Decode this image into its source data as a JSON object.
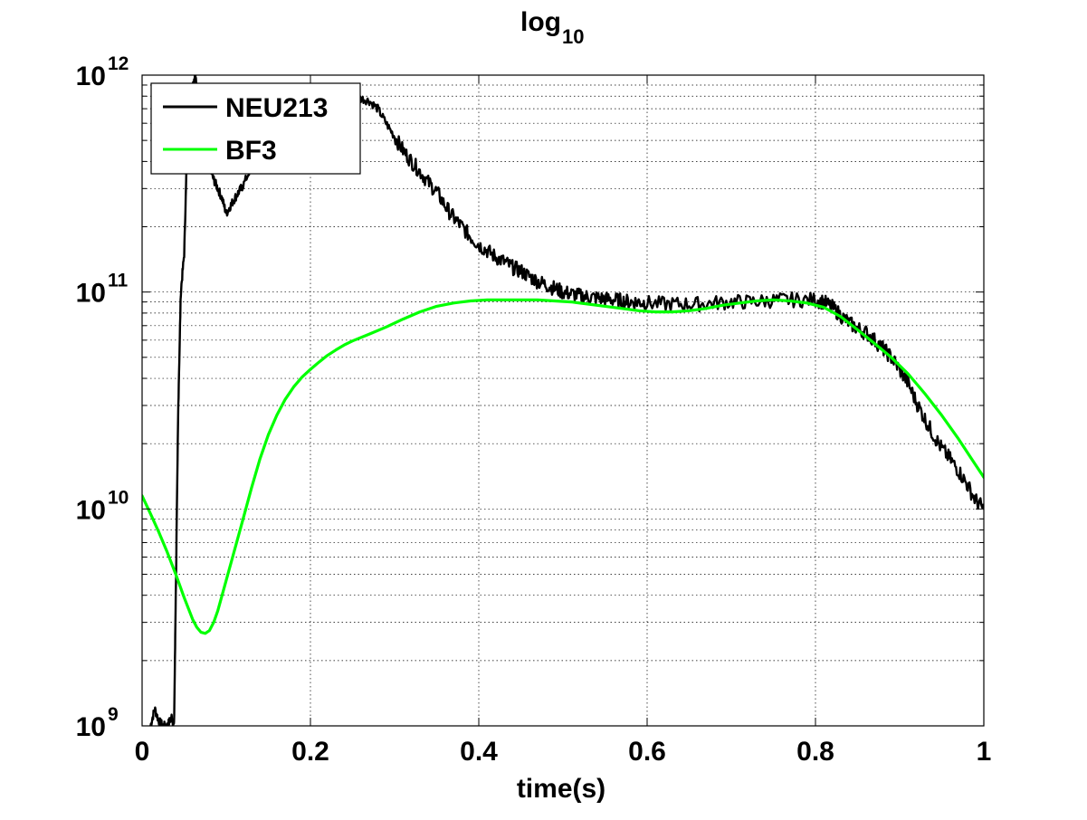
{
  "chart_data": {
    "type": "line",
    "title": "log",
    "title_subscript": "10",
    "xlabel": "time(s)",
    "ylabel": "",
    "xlim": [
      0,
      1
    ],
    "ylim": [
      1000000000,
      1000000000000
    ],
    "yscale": "log",
    "grid": true,
    "legend_position": "top-left",
    "x_ticks": [
      {
        "value": 0,
        "label": "0"
      },
      {
        "value": 0.2,
        "label": "0.2"
      },
      {
        "value": 0.4,
        "label": "0.4"
      },
      {
        "value": 0.6,
        "label": "0.6"
      },
      {
        "value": 0.8,
        "label": "0.8"
      },
      {
        "value": 1,
        "label": "1"
      }
    ],
    "y_ticks": [
      {
        "value": 1000000000,
        "base": "10",
        "exponent": "9"
      },
      {
        "value": 10000000000,
        "base": "10",
        "exponent": "10"
      },
      {
        "value": 100000000000,
        "base": "10",
        "exponent": "11"
      },
      {
        "value": 1000000000000,
        "base": "10",
        "exponent": "12"
      }
    ],
    "series": [
      {
        "name": "NEU213",
        "color": "#000000",
        "noisy": true,
        "x": [
          0.01,
          0.015,
          0.02,
          0.025,
          0.03,
          0.035,
          0.038,
          0.04,
          0.043,
          0.046,
          0.05,
          0.053,
          0.056,
          0.06,
          0.063,
          0.066,
          0.07,
          0.075,
          0.08,
          0.085,
          0.09,
          0.095,
          0.1,
          0.105,
          0.11,
          0.115,
          0.12,
          0.13,
          0.14,
          0.15,
          0.16,
          0.17,
          0.18,
          0.19,
          0.2,
          0.21,
          0.22,
          0.23,
          0.24,
          0.25,
          0.26,
          0.27,
          0.28,
          0.29,
          0.3,
          0.31,
          0.32,
          0.33,
          0.34,
          0.35,
          0.36,
          0.37,
          0.38,
          0.39,
          0.4,
          0.41,
          0.42,
          0.43,
          0.44,
          0.45,
          0.46,
          0.47,
          0.48,
          0.49,
          0.5,
          0.51,
          0.52,
          0.53,
          0.54,
          0.55,
          0.56,
          0.57,
          0.58,
          0.59,
          0.6,
          0.62,
          0.64,
          0.66,
          0.68,
          0.7,
          0.72,
          0.74,
          0.76,
          0.78,
          0.8,
          0.81,
          0.82,
          0.83,
          0.84,
          0.85,
          0.86,
          0.87,
          0.88,
          0.89,
          0.9,
          0.91,
          0.92,
          0.93,
          0.94,
          0.95,
          0.96,
          0.97,
          0.98,
          0.99,
          1.0
        ],
        "y": [
          1000000000,
          1200000000,
          1050000000,
          1000000000,
          1000000000,
          1100000000,
          1000000000,
          4000000000,
          30000000000,
          100000000000,
          150000000000,
          400000000000,
          700000000000,
          900000000000,
          1000000000000,
          800000000000,
          650000000000,
          450000000000,
          380000000000,
          330000000000,
          300000000000,
          270000000000,
          230000000000,
          250000000000,
          270000000000,
          290000000000,
          310000000000,
          380000000000,
          460000000000,
          550000000000,
          640000000000,
          710000000000,
          770000000000,
          820000000000,
          850000000000,
          860000000000,
          860000000000,
          840000000000,
          820000000000,
          800000000000,
          780000000000,
          760000000000,
          700000000000,
          600000000000,
          520000000000,
          450000000000,
          400000000000,
          360000000000,
          320000000000,
          290000000000,
          250000000000,
          220000000000,
          200000000000,
          180000000000,
          165000000000,
          155000000000,
          145000000000,
          138000000000,
          130000000000,
          125000000000,
          118000000000,
          112000000000,
          108000000000,
          104000000000,
          100000000000,
          98000000000,
          96000000000,
          95000000000,
          94000000000,
          93000000000,
          92000000000,
          91000000000,
          90000000000,
          90000000000,
          89000000000,
          88000000000,
          88000000000,
          88000000000,
          89000000000,
          90000000000,
          90000000000,
          91000000000,
          92000000000,
          92000000000,
          92000000000,
          90000000000,
          85000000000,
          78000000000,
          72000000000,
          68000000000,
          65000000000,
          60000000000,
          55000000000,
          50000000000,
          44000000000,
          38000000000,
          31000000000,
          26000000000,
          22000000000,
          19000000000,
          17000000000,
          15000000000,
          13000000000,
          11000000000,
          10000000000
        ]
      },
      {
        "name": "BF3",
        "color": "#00ff00",
        "noisy": false,
        "x": [
          0.0,
          0.01,
          0.02,
          0.03,
          0.04,
          0.05,
          0.06,
          0.065,
          0.07,
          0.075,
          0.08,
          0.085,
          0.09,
          0.1,
          0.11,
          0.12,
          0.13,
          0.14,
          0.15,
          0.16,
          0.17,
          0.18,
          0.19,
          0.2,
          0.21,
          0.22,
          0.23,
          0.24,
          0.25,
          0.27,
          0.29,
          0.31,
          0.33,
          0.35,
          0.37,
          0.39,
          0.41,
          0.43,
          0.45,
          0.47,
          0.49,
          0.51,
          0.53,
          0.55,
          0.57,
          0.59,
          0.61,
          0.63,
          0.65,
          0.67,
          0.69,
          0.71,
          0.73,
          0.75,
          0.77,
          0.79,
          0.81,
          0.83,
          0.85,
          0.87,
          0.89,
          0.91,
          0.93,
          0.95,
          0.97,
          0.99,
          1.0
        ],
        "y": [
          11500000000,
          9500000000,
          7800000000,
          6300000000,
          5000000000,
          3900000000,
          3100000000,
          2850000000,
          2700000000,
          2670000000,
          2750000000,
          3000000000,
          3400000000,
          4700000000,
          6500000000,
          9000000000,
          12500000000,
          17000000000,
          22000000000,
          27000000000,
          32000000000,
          36500000000,
          40500000000,
          44000000000,
          47500000000,
          51000000000,
          54000000000,
          57000000000,
          59500000000,
          64000000000,
          69000000000,
          75000000000,
          81000000000,
          86000000000,
          89000000000,
          91000000000,
          92000000000,
          92000000000,
          92000000000,
          92000000000,
          91000000000,
          90000000000,
          88000000000,
          86000000000,
          84000000000,
          82000000000,
          81000000000,
          81000000000,
          82000000000,
          84000000000,
          87000000000,
          89000000000,
          91000000000,
          92000000000,
          91000000000,
          89000000000,
          85000000000,
          77000000000,
          67000000000,
          58000000000,
          50000000000,
          42000000000,
          34000000000,
          27000000000,
          21000000000,
          16000000000,
          14000000000
        ]
      }
    ]
  }
}
